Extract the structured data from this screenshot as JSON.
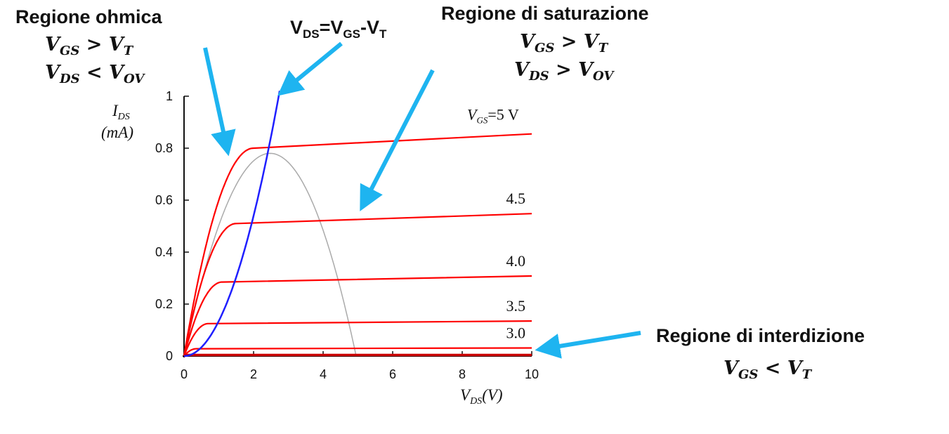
{
  "regions": {
    "ohmic": {
      "title": "Regione ohmica",
      "cond1": {
        "lhs": "V",
        "lhs_sub": "GS",
        "op": " > ",
        "rhs": "V",
        "rhs_sub": "T"
      },
      "cond2": {
        "lhs": "V",
        "lhs_sub": "DS",
        "op": " < ",
        "rhs": "V",
        "rhs_sub": "OV"
      }
    },
    "boundary": {
      "a": "V",
      "a_sub": "DS",
      "eq": "=V",
      "b_sub": "GS",
      "minus": "-V",
      "c_sub": "T"
    },
    "saturation": {
      "title": "Regione di saturazione",
      "cond1": {
        "lhs": "V",
        "lhs_sub": "GS",
        "op": " > ",
        "rhs": "V",
        "rhs_sub": "T"
      },
      "cond2": {
        "lhs": "V",
        "lhs_sub": "DS",
        "op": " > ",
        "rhs": "V",
        "rhs_sub": "OV"
      }
    },
    "cutoff": {
      "title": "Regione di interdizione",
      "cond1": {
        "lhs": "V",
        "lhs_sub": "GS",
        "op": " < ",
        "rhs": "V",
        "rhs_sub": "T"
      }
    }
  },
  "chart_data": {
    "type": "line",
    "xlabel": {
      "sym": "V",
      "sub": "DS",
      "unit": "(V)"
    },
    "ylabel": {
      "sym": "I",
      "sub": "DS",
      "unit": "(mA)"
    },
    "xlim": [
      0,
      10
    ],
    "ylim": [
      0,
      1
    ],
    "x_ticks": [
      "0",
      "2",
      "4",
      "6",
      "8",
      "10"
    ],
    "y_ticks": [
      "0",
      "0.2",
      "0.4",
      "0.6",
      "0.8",
      "1"
    ],
    "series": [
      {
        "name": "5 V",
        "vov": 2.0,
        "i_sat": 0.8,
        "i_end": 0.855,
        "color": "#ff0000"
      },
      {
        "name": "4.5",
        "vov": 1.5,
        "i_sat": 0.51,
        "i_end": 0.548,
        "color": "#ff0000"
      },
      {
        "name": "4.0",
        "vov": 1.1,
        "i_sat": 0.285,
        "i_end": 0.308,
        "color": "#ff0000"
      },
      {
        "name": "3.5",
        "vov": 0.7,
        "i_sat": 0.125,
        "i_end": 0.135,
        "color": "#ff0000"
      },
      {
        "name": "3.0",
        "vov": 0.35,
        "i_sat": 0.028,
        "i_end": 0.031,
        "color": "#ff0000"
      },
      {
        "name": "",
        "vov": 0.1,
        "i_sat": 0.004,
        "i_end": 0.004,
        "color": "#cc0000"
      }
    ],
    "curve_label_prefix": {
      "sym": "V",
      "sub": "GS",
      "eq": "=5 V"
    },
    "boundary_curve": {
      "k": 0.135,
      "x_max": 2.75,
      "color": "#1f1fff"
    },
    "power_parabola": {
      "x0": 0,
      "x1": 4.95,
      "peak_x": 2.5,
      "peak_y": 0.78,
      "color": "#aaaaaa"
    },
    "arrow_color": "#1eb4f0"
  }
}
